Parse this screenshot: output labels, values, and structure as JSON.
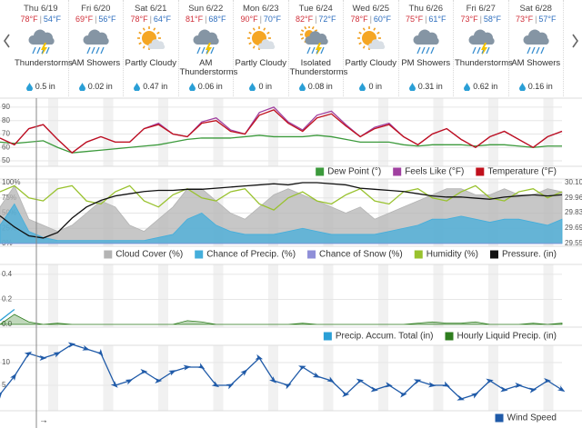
{
  "separator": "|",
  "now_marker": "→",
  "days": [
    {
      "day": "Thu 6/19",
      "high": "78°F",
      "low": "54°F",
      "condition": "Thunderstorms",
      "precip": "0.5 in",
      "icon": "storm"
    },
    {
      "day": "Fri 6/20",
      "high": "69°F",
      "low": "56°F",
      "condition": "AM Showers",
      "precip": "0.02 in",
      "icon": "showers"
    },
    {
      "day": "Sat 6/21",
      "high": "78°F",
      "low": "64°F",
      "condition": "Partly Cloudy",
      "precip": "0.47 in",
      "icon": "partly"
    },
    {
      "day": "Sun 6/22",
      "high": "81°F",
      "low": "68°F",
      "condition": "AM Thunderstorms",
      "precip": "0.06 in",
      "icon": "storm"
    },
    {
      "day": "Mon 6/23",
      "high": "90°F",
      "low": "70°F",
      "condition": "Partly Cloudy",
      "precip": "0 in",
      "icon": "partly"
    },
    {
      "day": "Tue 6/24",
      "high": "82°F",
      "low": "72°F",
      "condition": "Isolated Thunderstorms",
      "precip": "0.08 in",
      "icon": "isolated"
    },
    {
      "day": "Wed 6/25",
      "high": "78°F",
      "low": "60°F",
      "condition": "Partly Cloudy",
      "precip": "0 in",
      "icon": "partly"
    },
    {
      "day": "Thu 6/26",
      "high": "75°F",
      "low": "61°F",
      "condition": "PM Showers",
      "precip": "0.31 in",
      "icon": "showers"
    },
    {
      "day": "Fri 6/27",
      "high": "73°F",
      "low": "58°F",
      "condition": "Thunderstorms",
      "precip": "0.62 in",
      "icon": "storm"
    },
    {
      "day": "Sat 6/28",
      "high": "73°F",
      "low": "57°F",
      "condition": "AM Showers",
      "precip": "0.16 in",
      "icon": "showers"
    }
  ],
  "chart_data": [
    {
      "type": "line",
      "ylim": [
        48,
        94
      ],
      "yticks": [
        50,
        60,
        70,
        80,
        90
      ],
      "grid": true,
      "series": [
        {
          "name": "Dew Point (°)",
          "color": "#3c9a3c",
          "values": [
            64,
            63,
            64,
            65,
            60,
            56,
            57,
            58,
            59,
            60,
            61,
            62,
            64,
            66,
            67,
            67,
            67,
            68,
            69,
            68,
            68,
            68,
            69,
            68,
            66,
            64,
            64,
            64,
            62,
            61,
            62,
            62,
            62,
            61,
            62,
            62,
            61,
            60,
            61,
            61
          ]
        },
        {
          "name": "Feels Like (°F)",
          "color": "#a040a0",
          "values": [
            67,
            62,
            74,
            77,
            66,
            56,
            64,
            68,
            64,
            64,
            74,
            78,
            70,
            68,
            79,
            82,
            73,
            70,
            86,
            90,
            79,
            73,
            84,
            87,
            77,
            68,
            75,
            78,
            68,
            62,
            70,
            74,
            66,
            60,
            68,
            72,
            66,
            60,
            68,
            72
          ]
        },
        {
          "name": "Temperature (°F)",
          "color": "#c0101c",
          "values": [
            67,
            62,
            74,
            77,
            66,
            56,
            64,
            68,
            64,
            64,
            74,
            77,
            70,
            68,
            78,
            80,
            72,
            70,
            84,
            88,
            78,
            72,
            82,
            85,
            76,
            68,
            74,
            77,
            68,
            62,
            70,
            74,
            66,
            60,
            68,
            72,
            66,
            60,
            68,
            72
          ]
        }
      ]
    },
    {
      "type": "line",
      "ylim": [
        0,
        100
      ],
      "yticks": [
        {
          "value": 0,
          "label": "0%"
        },
        {
          "value": 25,
          "label": "25%"
        },
        {
          "value": 50,
          "label": "50%"
        },
        {
          "value": 75,
          "label": "75%"
        },
        {
          "value": 100,
          "label": "100%"
        }
      ],
      "y2lim": [
        29.55,
        30.1
      ],
      "y2ticks": [
        29.55,
        29.69,
        29.83,
        29.96,
        {
          "value": 30.1,
          "label": "30.10"
        }
      ],
      "grid": true,
      "series": [
        {
          "name": "Cloud Cover (%)",
          "color": "#b4b4b4",
          "fill": true,
          "values": [
            60,
            95,
            40,
            30,
            20,
            30,
            50,
            70,
            60,
            30,
            20,
            40,
            60,
            90,
            90,
            70,
            50,
            40,
            60,
            80,
            90,
            80,
            70,
            60,
            50,
            60,
            40,
            50,
            60,
            70,
            80,
            90,
            90,
            80,
            80,
            90,
            80,
            80,
            90,
            85
          ]
        },
        {
          "name": "Chance of Precip. (%)",
          "color": "#44aedb",
          "fill": true,
          "values": [
            30,
            65,
            20,
            10,
            5,
            5,
            5,
            5,
            5,
            5,
            5,
            10,
            15,
            40,
            50,
            30,
            20,
            15,
            15,
            15,
            20,
            25,
            20,
            15,
            15,
            15,
            15,
            20,
            25,
            30,
            40,
            40,
            45,
            40,
            35,
            40,
            40,
            35,
            30,
            40
          ]
        },
        {
          "name": "Chance of Snow (%)",
          "color": "#8f8fd8",
          "fill": true,
          "values": [
            0,
            0,
            0,
            0,
            0,
            0,
            0,
            0,
            0,
            0,
            0,
            0,
            0,
            0,
            0,
            0,
            0,
            0,
            0,
            0,
            0,
            0,
            0,
            0,
            0,
            0,
            0,
            0,
            0,
            0,
            0,
            0,
            0,
            0,
            0,
            0,
            0,
            0,
            0,
            0
          ]
        },
        {
          "name": "Humidity (%)",
          "color": "#99c22e",
          "values": [
            85,
            95,
            75,
            70,
            90,
            95,
            70,
            65,
            85,
            95,
            70,
            60,
            80,
            90,
            75,
            70,
            85,
            90,
            65,
            55,
            75,
            85,
            70,
            65,
            80,
            90,
            70,
            65,
            85,
            90,
            75,
            70,
            85,
            95,
            75,
            70,
            85,
            90,
            75,
            85
          ]
        },
        {
          "name": "Pressure. (in)",
          "color": "#111111",
          "axis": "y2",
          "values": [
            29.8,
            29.7,
            29.62,
            29.6,
            29.65,
            29.78,
            29.88,
            29.94,
            29.98,
            30.0,
            30.02,
            30.03,
            30.03,
            30.04,
            30.04,
            30.05,
            30.06,
            30.07,
            30.08,
            30.09,
            30.08,
            30.1,
            30.1,
            30.09,
            30.08,
            30.05,
            30.04,
            30.03,
            30.02,
            30.0,
            29.98,
            29.97,
            29.97,
            29.96,
            29.95,
            29.97,
            29.98,
            29.99,
            29.98,
            29.99
          ]
        }
      ]
    },
    {
      "type": "line",
      "ylim": [
        0,
        0.45
      ],
      "yticks": [
        {
          "value": 0,
          "label": "0.0"
        },
        0.2,
        0.4
      ],
      "grid": true,
      "series": [
        {
          "name": "Precip. Accum. Total (in)",
          "color": "#2a9fd6",
          "values": [
            0.03,
            0.12,
            null,
            null,
            null,
            null,
            null,
            null,
            null,
            null,
            null,
            null,
            null,
            null,
            null,
            null,
            null,
            null,
            null,
            null,
            null,
            null,
            null,
            null,
            null,
            null,
            null,
            null,
            null,
            null,
            null,
            null,
            null,
            null,
            null,
            null,
            null,
            null,
            null,
            null
          ]
        },
        {
          "name": "Hourly Liquid Precip. (in)",
          "color": "#2e7d1e",
          "fill": true,
          "values": [
            0,
            0.08,
            0.02,
            0,
            0.01,
            0,
            0,
            0,
            0,
            0,
            0,
            0,
            0,
            0.03,
            0.02,
            0,
            0,
            0,
            0,
            0,
            0,
            0.01,
            0,
            0,
            0,
            0,
            0,
            0,
            0,
            0.01,
            0.02,
            0.01,
            0.01,
            0.02,
            0,
            0,
            0,
            0.01,
            0,
            0.01
          ]
        }
      ]
    },
    {
      "type": "line",
      "ylim": [
        0,
        13
      ],
      "yticks": [
        5,
        10
      ],
      "grid": true,
      "series": [
        {
          "name": "Wind Speed",
          "color": "#1f5aa8",
          "marker": "arrow",
          "values": [
            3,
            7,
            12,
            11,
            12,
            14,
            13,
            12,
            5,
            6,
            8,
            6,
            8,
            9,
            9,
            5,
            5,
            8,
            11,
            6,
            5,
            9,
            7,
            6,
            3,
            6,
            4,
            5,
            3,
            6,
            5,
            5,
            2,
            3,
            6,
            4,
            5,
            4,
            6,
            4
          ]
        }
      ]
    }
  ]
}
